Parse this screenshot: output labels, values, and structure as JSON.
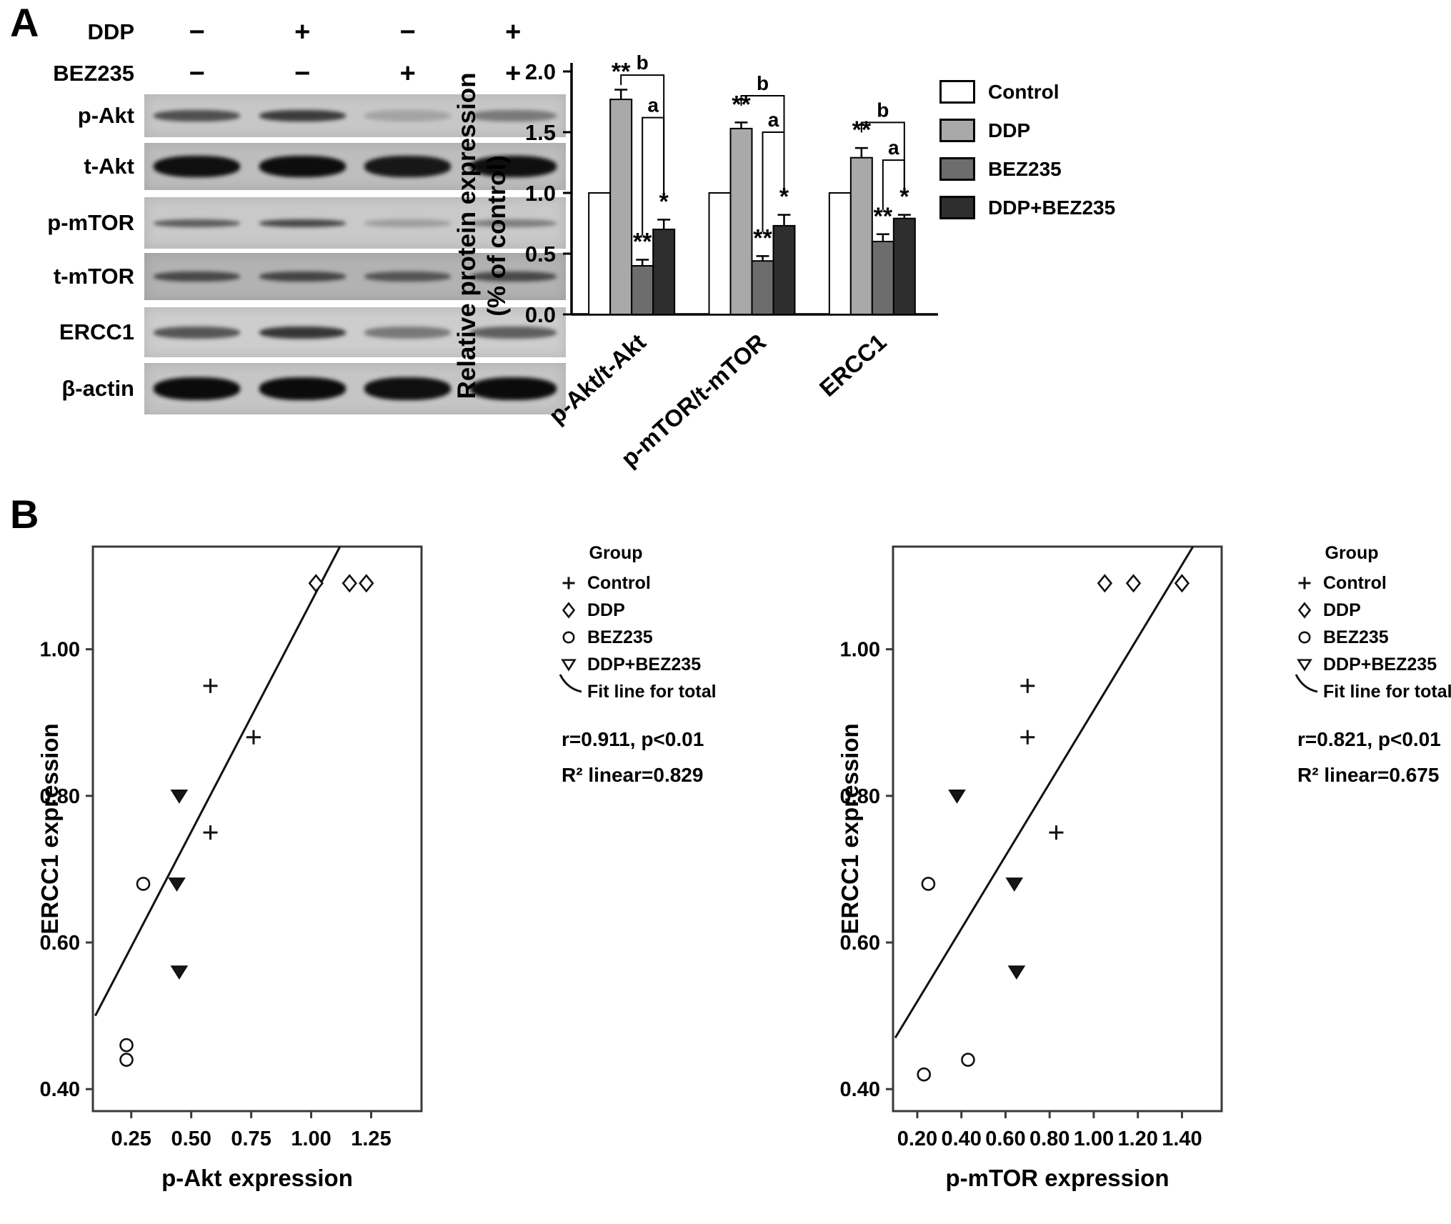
{
  "panelA": {
    "label": "A",
    "treatment_rows": [
      {
        "name": "DDP",
        "symbols": [
          "−",
          "+",
          "−",
          "+"
        ]
      },
      {
        "name": "BEZ235",
        "symbols": [
          "−",
          "−",
          "+",
          "+"
        ]
      }
    ],
    "blots": [
      {
        "label": "p-Akt",
        "bg": "#c7c7c7",
        "band_height": 16,
        "intensities": [
          0.62,
          0.72,
          0.18,
          0.4
        ]
      },
      {
        "label": "t-Akt",
        "bg": "#bdbdbd",
        "band_height": 30,
        "intensities": [
          0.95,
          0.96,
          0.9,
          0.95
        ]
      },
      {
        "label": "p-mTOR",
        "bg": "#c9c9c9",
        "band_height": 11,
        "intensities": [
          0.55,
          0.66,
          0.22,
          0.38
        ]
      },
      {
        "label": "t-mTOR",
        "bg": "#b2b2b2",
        "band_height": 14,
        "intensities": [
          0.62,
          0.64,
          0.55,
          0.62
        ]
      },
      {
        "label": "ERCC1",
        "bg": "#cdcdcd",
        "band_height": 17,
        "intensities": [
          0.6,
          0.76,
          0.42,
          0.55
        ]
      },
      {
        "label": "β-actin",
        "bg": "#c5c5c5",
        "band_height": 32,
        "intensities": [
          0.97,
          0.97,
          0.95,
          0.97
        ]
      }
    ]
  },
  "panelB": {
    "label": "B"
  },
  "chart_data": [
    {
      "type": "bar",
      "ylabel_lines": [
        "Relative protein expression",
        "(% of control)"
      ],
      "ylim": [
        0,
        2.0
      ],
      "ytick_labels": [
        "0.0",
        "0.5",
        "1.0",
        "1.5",
        "2.0"
      ],
      "categories": [
        "p-Akt/t-Akt",
        "p-mTOR/t-mTOR",
        "ERCC1"
      ],
      "series": [
        {
          "name": "Control",
          "color": "#ffffff",
          "values": [
            1.0,
            1.0,
            1.0
          ],
          "errors": [
            0,
            0,
            0
          ],
          "sig": [
            "",
            "",
            ""
          ]
        },
        {
          "name": "DDP",
          "color": "#a9a9a9",
          "values": [
            1.77,
            1.53,
            1.29
          ],
          "errors": [
            0.08,
            0.05,
            0.08
          ],
          "sig": [
            "**",
            "**",
            "**"
          ]
        },
        {
          "name": "BEZ235",
          "color": "#6d6d6d",
          "values": [
            0.4,
            0.44,
            0.6
          ],
          "errors": [
            0.05,
            0.04,
            0.06
          ],
          "sig": [
            "**",
            "**",
            "**"
          ]
        },
        {
          "name": "DDP+BEZ235",
          "color": "#2e2e2e",
          "values": [
            0.7,
            0.73,
            0.79
          ],
          "errors": [
            0.08,
            0.09,
            0.03
          ],
          "sig": [
            "*",
            "*",
            "*"
          ]
        }
      ],
      "comparison_brackets": [
        {
          "group": 0,
          "label": "b",
          "from": 1,
          "to": 3,
          "height": 1.97
        },
        {
          "group": 0,
          "label": "a",
          "from": 2,
          "to": 3,
          "height": 1.62
        },
        {
          "group": 1,
          "label": "b",
          "from": 1,
          "to": 3,
          "height": 1.8
        },
        {
          "group": 1,
          "label": "a",
          "from": 2,
          "to": 3,
          "height": 1.5
        },
        {
          "group": 2,
          "label": "b",
          "from": 1,
          "to": 3,
          "height": 1.58
        },
        {
          "group": 2,
          "label": "a",
          "from": 2,
          "to": 3,
          "height": 1.27
        }
      ],
      "legend": [
        "Control",
        "DDP",
        "BEZ235",
        "DDP+BEZ235"
      ]
    },
    {
      "type": "scatter",
      "xlabel": "p-Akt expression",
      "ylabel": "ERCC1 expression",
      "xlim": [
        0.09,
        1.46
      ],
      "ylim": [
        0.37,
        1.14
      ],
      "xtick_labels": [
        "0.25",
        "0.50",
        "0.75",
        "1.00",
        "1.25"
      ],
      "ytick_labels": [
        "0.40",
        "0.60",
        "0.80",
        "1.00"
      ],
      "legend_title": "Group",
      "fit_line_label": "Fit line for total",
      "stats_line1": "r=0.911, p<0.01",
      "stats_line2": "R² linear=0.829",
      "fit_line": [
        [
          0.1,
          0.5
        ],
        [
          1.12,
          1.14
        ]
      ],
      "series": [
        {
          "name": "Control",
          "marker": "plus",
          "points": [
            [
              0.58,
              0.95
            ],
            [
              0.76,
              0.88
            ],
            [
              0.58,
              0.75
            ]
          ]
        },
        {
          "name": "DDP",
          "marker": "diamond",
          "points": [
            [
              1.02,
              1.09
            ],
            [
              1.16,
              1.09
            ],
            [
              1.23,
              1.09
            ]
          ]
        },
        {
          "name": "BEZ235",
          "marker": "circle",
          "points": [
            [
              0.3,
              0.68
            ],
            [
              0.23,
              0.46
            ],
            [
              0.23,
              0.44
            ]
          ]
        },
        {
          "name": "DDP+BEZ235",
          "marker": "triangle",
          "points": [
            [
              0.45,
              0.8
            ],
            [
              0.44,
              0.68
            ],
            [
              0.45,
              0.56
            ]
          ]
        }
      ]
    },
    {
      "type": "scatter",
      "xlabel": "p-mTOR expression",
      "ylabel": "ERCC1 expression",
      "xlim": [
        0.09,
        1.58
      ],
      "ylim": [
        0.37,
        1.14
      ],
      "xtick_labels": [
        "0.20",
        "0.40",
        "0.60",
        "0.80",
        "1.00",
        "1.20",
        "1.40"
      ],
      "ytick_labels": [
        "0.40",
        "0.60",
        "0.80",
        "1.00"
      ],
      "legend_title": "Group",
      "fit_line_label": "Fit line for total",
      "stats_line1": "r=0.821, p<0.01",
      "stats_line2": "R² linear=0.675",
      "fit_line": [
        [
          0.1,
          0.47
        ],
        [
          1.45,
          1.14
        ]
      ],
      "series": [
        {
          "name": "Control",
          "marker": "plus",
          "points": [
            [
              0.7,
              0.95
            ],
            [
              0.7,
              0.88
            ],
            [
              0.83,
              0.75
            ]
          ]
        },
        {
          "name": "DDP",
          "marker": "diamond",
          "points": [
            [
              1.05,
              1.09
            ],
            [
              1.18,
              1.09
            ],
            [
              1.4,
              1.09
            ]
          ]
        },
        {
          "name": "BEZ235",
          "marker": "circle",
          "points": [
            [
              0.25,
              0.68
            ],
            [
              0.23,
              0.42
            ],
            [
              0.43,
              0.44
            ]
          ]
        },
        {
          "name": "DDP+BEZ235",
          "marker": "triangle",
          "points": [
            [
              0.38,
              0.8
            ],
            [
              0.64,
              0.68
            ],
            [
              0.65,
              0.56
            ]
          ]
        }
      ]
    }
  ]
}
